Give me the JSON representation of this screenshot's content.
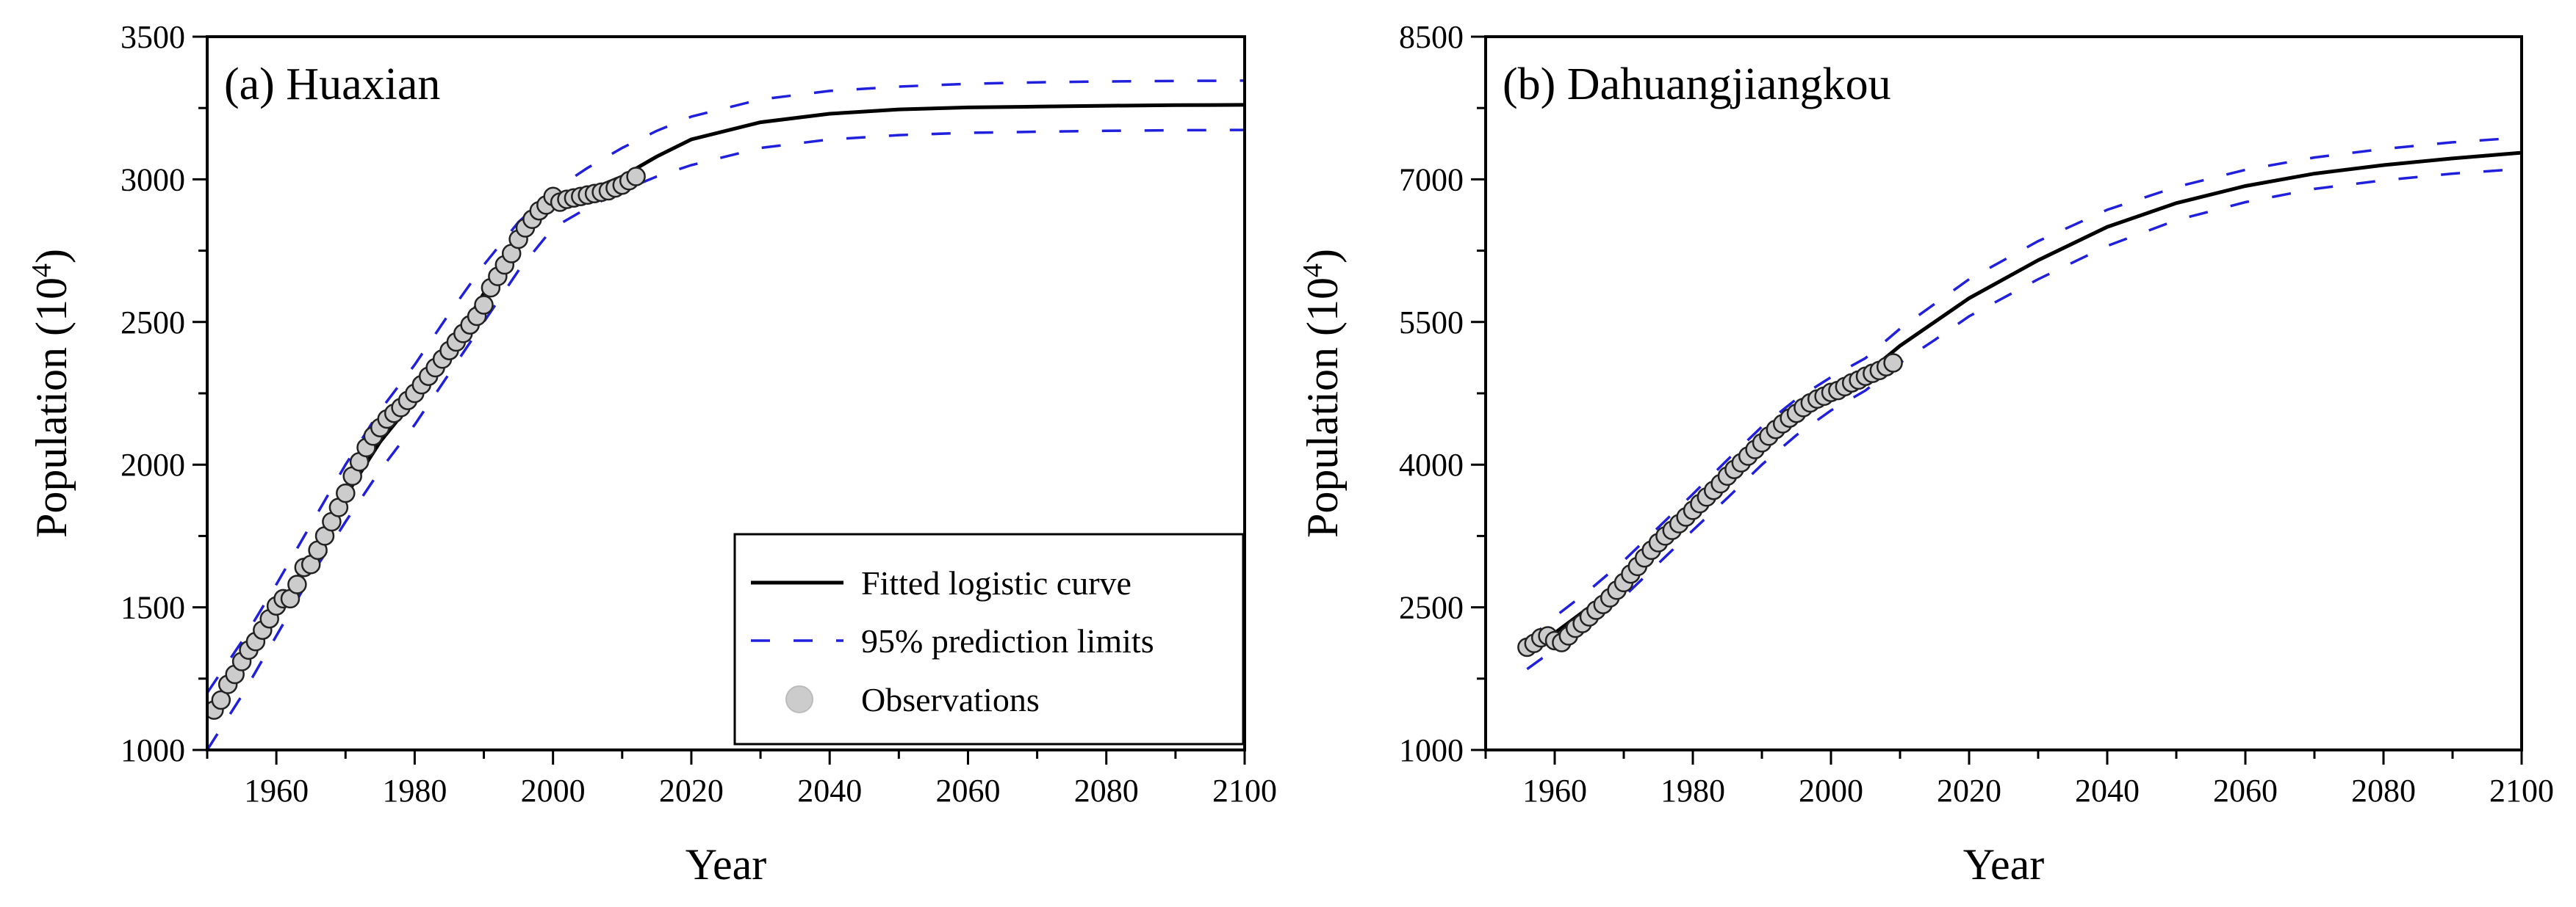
{
  "colors": {
    "fitted": "#000000",
    "limits": "#1f1fdc",
    "observation_fill": "#cccccc",
    "observation_stroke": "#222222"
  },
  "legend": {
    "fitted_label": "Fitted logistic curve",
    "limits_label": "95% prediction limits",
    "obs_label": "Observations"
  },
  "chart_data": [
    {
      "type": "line",
      "panel_id": "a",
      "title": "(a) Huaxian",
      "xlabel": "Year",
      "ylabel_main": "Population (10",
      "ylabel_sup": "4",
      "ylabel_close": ")",
      "xlim": [
        1950,
        2100
      ],
      "ylim": [
        1000,
        3500
      ],
      "xticks": [
        1960,
        1980,
        2000,
        2020,
        2040,
        2060,
        2080,
        2100
      ],
      "yticks": [
        1000,
        1500,
        2000,
        2500,
        3000,
        3500
      ],
      "legend_position": "bottom-right",
      "series": [
        {
          "name": "Fitted logistic curve",
          "kind": "line",
          "style": "solid",
          "x": [
            1950,
            1955,
            1960,
            1965,
            1970,
            1975,
            1980,
            1985,
            1990,
            1995,
            2000,
            2005,
            2010,
            2015,
            2020,
            2030,
            2040,
            2050,
            2060,
            2070,
            2080,
            2090,
            2100
          ],
          "values": [
            1130,
            1290,
            1480,
            1680,
            1890,
            2080,
            2230,
            2400,
            2600,
            2780,
            2910,
            2960,
            3010,
            3080,
            3140,
            3200,
            3230,
            3245,
            3252,
            3255,
            3258,
            3260,
            3261
          ]
        },
        {
          "name": "95% upper prediction limit",
          "kind": "line",
          "style": "dashed",
          "x": [
            1950,
            1955,
            1960,
            1965,
            1970,
            1975,
            1980,
            1985,
            1990,
            1995,
            2000,
            2005,
            2010,
            2015,
            2020,
            2030,
            2040,
            2050,
            2060,
            2070,
            2080,
            2090,
            2100
          ],
          "values": [
            1200,
            1380,
            1580,
            1790,
            2000,
            2190,
            2350,
            2530,
            2700,
            2850,
            2960,
            3040,
            3110,
            3170,
            3220,
            3280,
            3310,
            3325,
            3335,
            3340,
            3343,
            3345,
            3346
          ]
        },
        {
          "name": "95% lower prediction limit",
          "kind": "line",
          "style": "dashed",
          "x": [
            1950,
            1955,
            1960,
            1965,
            1970,
            1975,
            1980,
            1985,
            1990,
            1995,
            2000,
            2005,
            2010,
            2015,
            2020,
            2030,
            2040,
            2050,
            2060,
            2070,
            2080,
            2090,
            2100
          ],
          "values": [
            1000,
            1190,
            1400,
            1610,
            1800,
            1980,
            2140,
            2320,
            2500,
            2680,
            2830,
            2900,
            2960,
            3010,
            3050,
            3110,
            3140,
            3155,
            3163,
            3167,
            3170,
            3172,
            3173
          ]
        },
        {
          "name": "Observations",
          "kind": "scatter",
          "x": [
            1951,
            1952,
            1953,
            1954,
            1955,
            1956,
            1957,
            1958,
            1959,
            1960,
            1961,
            1962,
            1963,
            1964,
            1965,
            1966,
            1967,
            1968,
            1969,
            1970,
            1971,
            1972,
            1973,
            1974,
            1975,
            1976,
            1977,
            1978,
            1979,
            1980,
            1981,
            1982,
            1983,
            1984,
            1985,
            1986,
            1987,
            1988,
            1989,
            1990,
            1991,
            1992,
            1993,
            1994,
            1995,
            1996,
            1997,
            1998,
            1999,
            2000,
            2001,
            2002,
            2003,
            2004,
            2005,
            2006,
            2007,
            2008,
            2009,
            2010,
            2011,
            2012
          ],
          "values": [
            1140,
            1175,
            1230,
            1265,
            1310,
            1350,
            1380,
            1420,
            1460,
            1505,
            1530,
            1530,
            1580,
            1640,
            1650,
            1700,
            1750,
            1800,
            1850,
            1900,
            1960,
            2010,
            2060,
            2100,
            2130,
            2160,
            2180,
            2200,
            2225,
            2250,
            2280,
            2310,
            2340,
            2370,
            2400,
            2430,
            2460,
            2490,
            2520,
            2560,
            2620,
            2660,
            2700,
            2740,
            2790,
            2830,
            2860,
            2890,
            2910,
            2940,
            2920,
            2930,
            2935,
            2940,
            2945,
            2950,
            2955,
            2960,
            2970,
            2980,
            2995,
            3010
          ]
        }
      ]
    },
    {
      "type": "line",
      "panel_id": "b",
      "title": "(b) Dahuangjiangkou",
      "xlabel": "Year",
      "ylabel_main": "Population (10",
      "ylabel_sup": "4",
      "ylabel_close": ")",
      "xlim": [
        1950,
        2100
      ],
      "ylim": [
        1000,
        8500
      ],
      "xticks": [
        1960,
        1980,
        2000,
        2020,
        2040,
        2060,
        2080,
        2100
      ],
      "yticks": [
        1000,
        2500,
        4000,
        5500,
        7000,
        8500
      ],
      "series": [
        {
          "name": "Fitted logistic curve",
          "kind": "line",
          "style": "solid",
          "x": [
            1956,
            1960,
            1965,
            1970,
            1975,
            1980,
            1985,
            1990,
            1995,
            2000,
            2005,
            2010,
            2015,
            2020,
            2030,
            2040,
            2050,
            2060,
            2070,
            2080,
            2090,
            2100
          ],
          "values": [
            2000,
            2230,
            2500,
            2800,
            3150,
            3500,
            3850,
            4200,
            4500,
            4750,
            4950,
            5250,
            5500,
            5750,
            6150,
            6500,
            6750,
            6930,
            7060,
            7150,
            7220,
            7280
          ]
        },
        {
          "name": "95% upper prediction limit",
          "kind": "line",
          "style": "dashed",
          "x": [
            1956,
            1960,
            1965,
            1970,
            1975,
            1980,
            1985,
            1990,
            1995,
            2000,
            2005,
            2010,
            2015,
            2020,
            2030,
            2040,
            2050,
            2060,
            2070,
            2080,
            2090,
            2100
          ],
          "values": [
            2150,
            2400,
            2680,
            2990,
            3340,
            3690,
            4050,
            4400,
            4690,
            4920,
            5120,
            5430,
            5690,
            5950,
            6350,
            6680,
            6920,
            7100,
            7230,
            7320,
            7390,
            7440
          ]
        },
        {
          "name": "95% lower prediction limit",
          "kind": "line",
          "style": "dashed",
          "x": [
            1956,
            1960,
            1965,
            1970,
            1975,
            1980,
            1985,
            1990,
            1995,
            2000,
            2005,
            2010,
            2015,
            2020,
            2030,
            2040,
            2050,
            2060,
            2070,
            2080,
            2090,
            2100
          ],
          "values": [
            1850,
            2060,
            2320,
            2610,
            2960,
            3310,
            3650,
            4000,
            4310,
            4570,
            4780,
            5070,
            5310,
            5560,
            5950,
            6300,
            6570,
            6760,
            6900,
            6990,
            7060,
            7110
          ]
        },
        {
          "name": "Observations",
          "kind": "scatter",
          "x": [
            1956,
            1957,
            1958,
            1959,
            1960,
            1961,
            1962,
            1963,
            1964,
            1965,
            1966,
            1967,
            1968,
            1969,
            1970,
            1971,
            1972,
            1973,
            1974,
            1975,
            1976,
            1977,
            1978,
            1979,
            1980,
            1981,
            1982,
            1983,
            1984,
            1985,
            1986,
            1987,
            1988,
            1989,
            1990,
            1991,
            1992,
            1993,
            1994,
            1995,
            1996,
            1997,
            1998,
            1999,
            2000,
            2001,
            2002,
            2003,
            2004,
            2005,
            2006,
            2007,
            2008,
            2009
          ],
          "values": [
            2080,
            2120,
            2180,
            2200,
            2150,
            2130,
            2200,
            2280,
            2330,
            2400,
            2470,
            2530,
            2600,
            2680,
            2760,
            2850,
            2930,
            3020,
            3100,
            3180,
            3250,
            3310,
            3380,
            3450,
            3520,
            3590,
            3660,
            3730,
            3800,
            3880,
            3950,
            4020,
            4090,
            4160,
            4230,
            4300,
            4370,
            4430,
            4490,
            4540,
            4600,
            4650,
            4690,
            4720,
            4760,
            4780,
            4820,
            4860,
            4890,
            4930,
            4960,
            4990,
            5030,
            5070
          ]
        }
      ]
    }
  ]
}
